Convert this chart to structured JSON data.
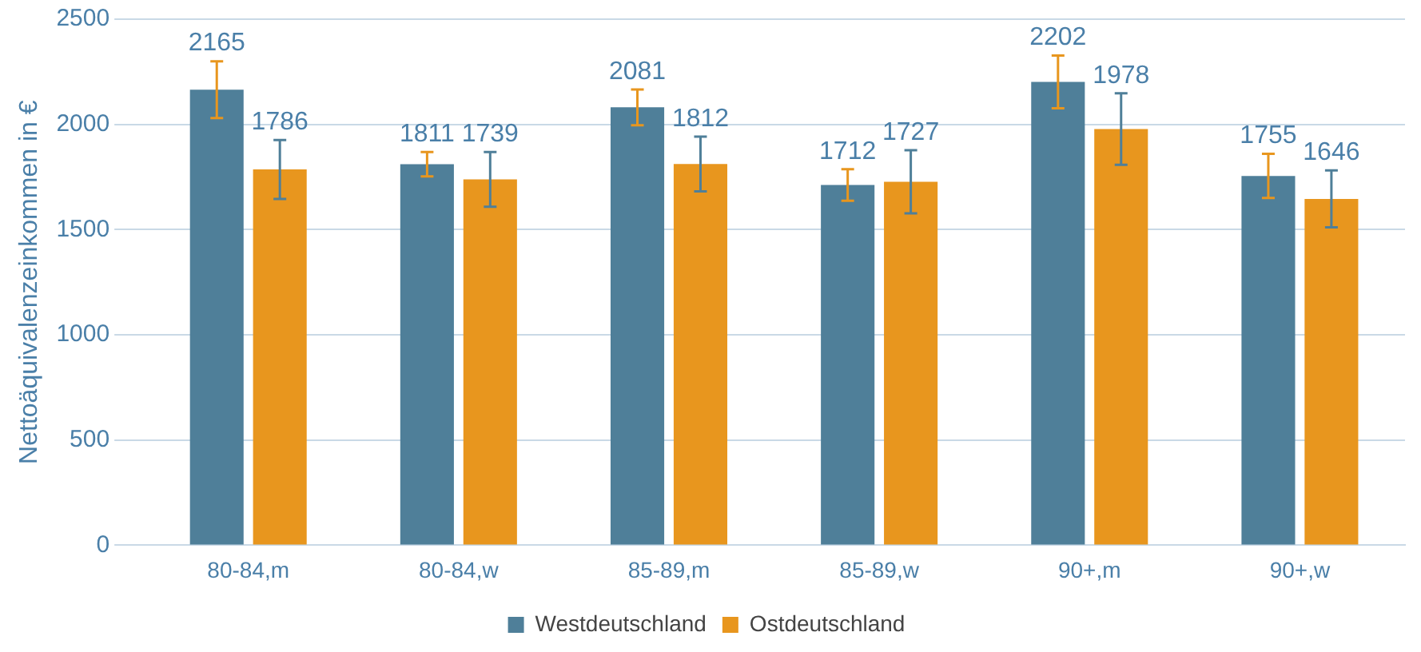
{
  "chart_data": {
    "type": "bar",
    "ylabel": "Nettoäquivalenzeinkommen in €",
    "categories": [
      "80-84,m",
      "80-84,w",
      "85-89,m",
      "85-89,w",
      "90+,m",
      "90+,w"
    ],
    "series": [
      {
        "name": "Westdeutschland",
        "color": "#4f7f99",
        "values": [
          2165,
          1811,
          2081,
          1712,
          2202,
          1755
        ],
        "errors": [
          135,
          58,
          85,
          75,
          125,
          105
        ]
      },
      {
        "name": "Ostdeutschland",
        "color": "#e8961e",
        "values": [
          1786,
          1739,
          1812,
          1727,
          1978,
          1646
        ],
        "errors": [
          140,
          130,
          130,
          150,
          170,
          135
        ]
      }
    ],
    "ylim": [
      0,
      2500
    ],
    "yticks": [
      0,
      500,
      1000,
      1500,
      2000,
      2500
    ],
    "grid": "y",
    "legend": "bottom",
    "data_labels": true
  }
}
